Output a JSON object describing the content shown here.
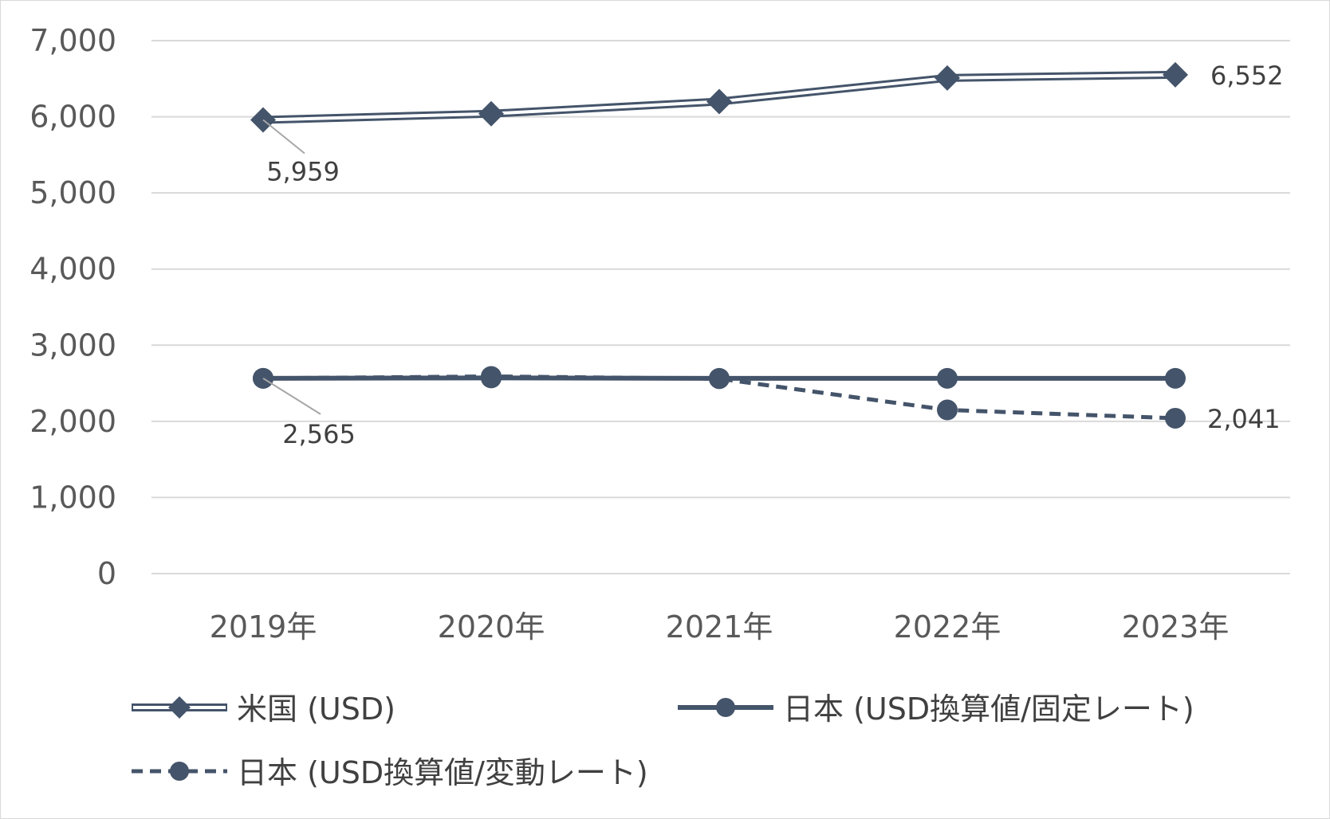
{
  "chart_data": {
    "type": "line",
    "categories": [
      "2019年",
      "2020年",
      "2021年",
      "2022年",
      "2023年"
    ],
    "ylim": [
      0,
      7000
    ],
    "yticks": [
      0,
      1000,
      2000,
      3000,
      4000,
      5000,
      6000,
      7000
    ],
    "ytick_labels": [
      "0",
      "1,000",
      "2,000",
      "3,000",
      "4,000",
      "5,000",
      "6,000",
      "7,000"
    ],
    "grid": true,
    "legend_position": "bottom",
    "series": [
      {
        "name": "米国 (USD)",
        "style": "double-line",
        "marker": "diamond",
        "values": [
          5959,
          6040,
          6200,
          6510,
          6552
        ],
        "labels": [
          {
            "index": 0,
            "text": "5,959"
          },
          {
            "index": 4,
            "text": "6,552"
          }
        ]
      },
      {
        "name": "日本 (USD換算値/固定レート)",
        "style": "solid",
        "marker": "circle",
        "values": [
          2565,
          2570,
          2565,
          2565,
          2565
        ],
        "labels": [
          {
            "index": 0,
            "text": "2,565"
          }
        ]
      },
      {
        "name": "日本 (USD換算値/変動レート)",
        "style": "dashed",
        "marker": "circle",
        "values": [
          2565,
          2590,
          2560,
          2150,
          2041
        ],
        "labels": [
          {
            "index": 4,
            "text": "2,041"
          }
        ]
      }
    ],
    "colors": {
      "series": "#44546a",
      "grid": "#d9d9d9",
      "axis_text": "#595959",
      "label_text": "#404040",
      "leader": "#a6a6a6"
    }
  }
}
